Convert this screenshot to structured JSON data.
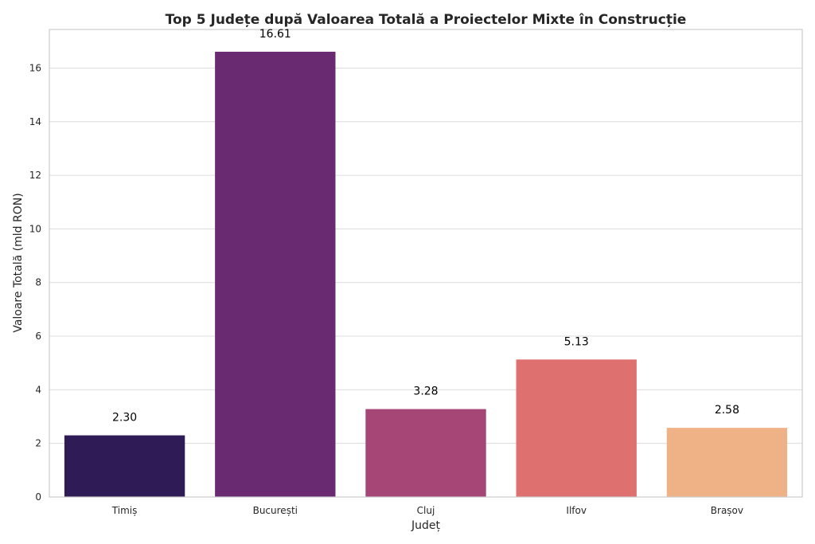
{
  "chart_data": {
    "type": "bar",
    "title": "Top 5 Județe după Valoarea Totală a Proiectelor Mixte în Construcție",
    "xlabel": "Județ",
    "ylabel": "Valoare Totală (mld RON)",
    "categories": [
      "Timiș",
      "București",
      "Cluj",
      "Ilfov",
      "Brașov"
    ],
    "values": [
      2.3,
      16.61,
      3.28,
      5.13,
      2.58
    ],
    "value_labels": [
      "2.30",
      "16.61",
      "3.28",
      "5.13",
      "2.58"
    ],
    "colors": [
      "#2f1b55",
      "#6a2a72",
      "#a64676",
      "#de716f",
      "#efb287"
    ],
    "ylim": [
      0,
      17.44
    ],
    "yticks": [
      0,
      2,
      4,
      6,
      8,
      10,
      12,
      14,
      16
    ],
    "ytick_labels": [
      "0",
      "2",
      "4",
      "6",
      "8",
      "10",
      "12",
      "14",
      "16"
    ],
    "grid": true,
    "legend": "none"
  }
}
